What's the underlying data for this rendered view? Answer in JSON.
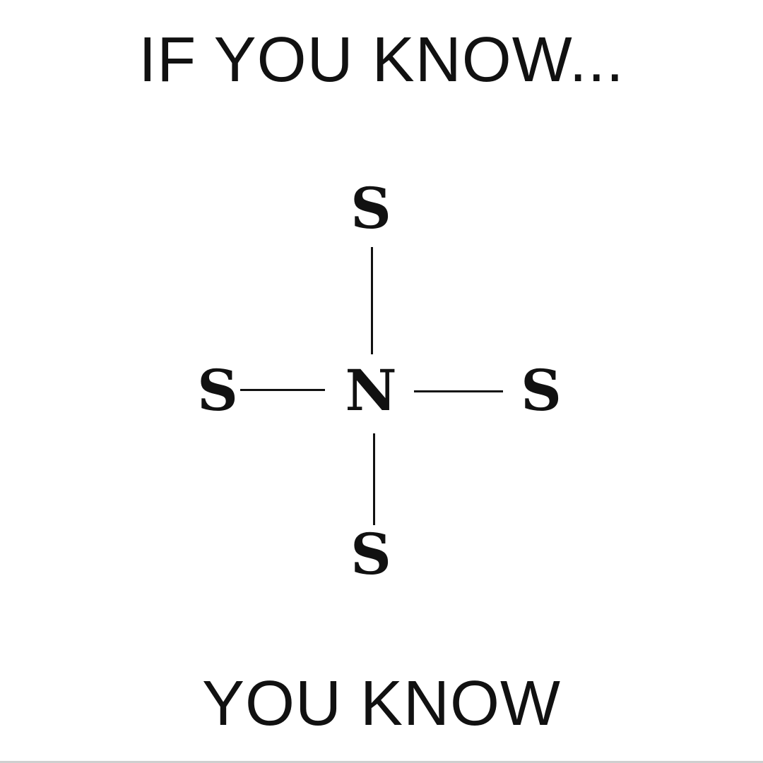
{
  "header": {
    "text": "IF YOU KNOW..."
  },
  "diagram": {
    "center": "N",
    "top": "S",
    "left": "S",
    "right": "S",
    "bottom": "S"
  },
  "footer": {
    "text": "YOU KNOW"
  }
}
